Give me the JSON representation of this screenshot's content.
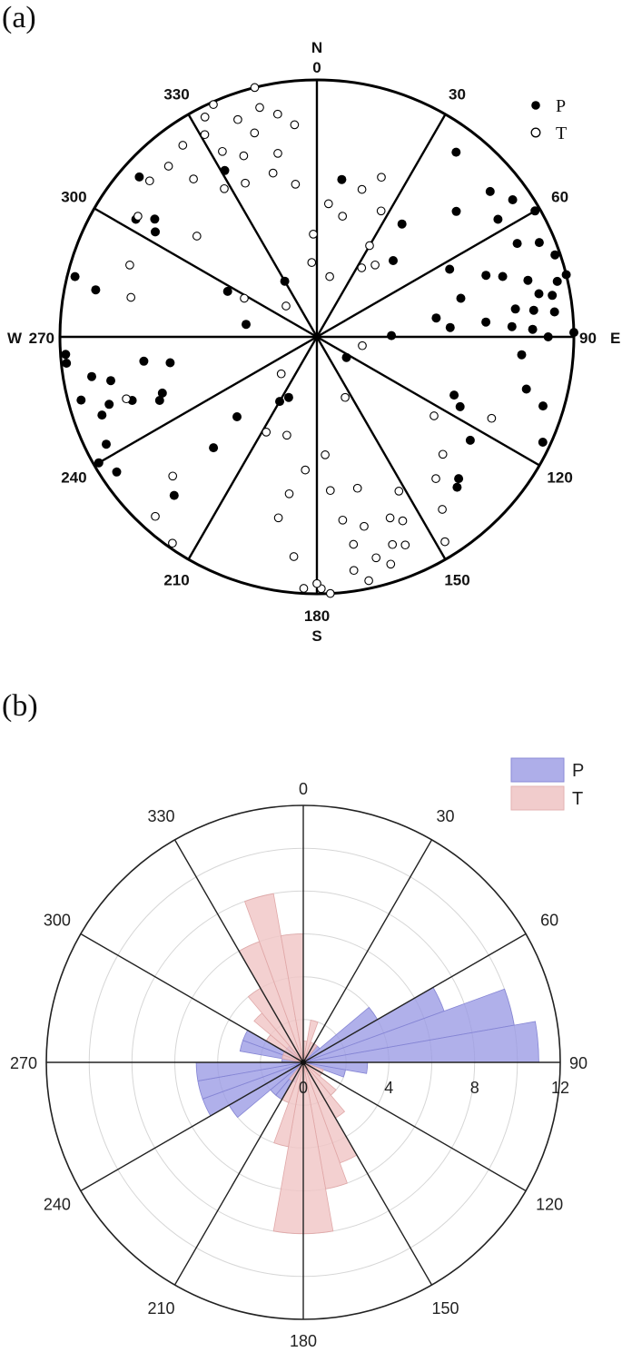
{
  "panels": {
    "a": {
      "label": "(a)"
    },
    "b": {
      "label": "(b)"
    }
  },
  "chart_data": [
    {
      "type": "scatter",
      "coordinate_system": "polar",
      "angle_unit": "degrees azimuth (clockwise from north)",
      "radial_unit": "plunge-based radius (0 = center, 1 = rim)",
      "sectors_deg": 30,
      "angle_ticks": [
        {
          "angle": 0,
          "label": "0",
          "direction": "N"
        },
        {
          "angle": 30,
          "label": "30"
        },
        {
          "angle": 60,
          "label": "60"
        },
        {
          "angle": 90,
          "label": "90",
          "direction": "E"
        },
        {
          "angle": 120,
          "label": "120"
        },
        {
          "angle": 150,
          "label": "150"
        },
        {
          "angle": 180,
          "label": "180",
          "direction": "S"
        },
        {
          "angle": 210,
          "label": "210"
        },
        {
          "angle": 240,
          "label": "240"
        },
        {
          "angle": 270,
          "label": "270",
          "direction": "W"
        },
        {
          "angle": 300,
          "label": "300"
        },
        {
          "angle": 330,
          "label": "330"
        }
      ],
      "legend_position": "top-right",
      "series": [
        {
          "name": "P",
          "marker": "filled-circle",
          "color": "#000000",
          "points": [
            {
              "az": 9,
              "r": 0.62
            },
            {
              "az": 37,
              "r": 0.55
            },
            {
              "az": 37,
              "r": 0.9
            },
            {
              "az": 45,
              "r": 0.42
            },
            {
              "az": 48,
              "r": 0.73
            },
            {
              "az": 50,
              "r": 0.88
            },
            {
              "az": 55,
              "r": 0.93
            },
            {
              "az": 57,
              "r": 0.84
            },
            {
              "az": 60,
              "r": 0.98
            },
            {
              "az": 63,
              "r": 0.58
            },
            {
              "az": 65,
              "r": 0.86
            },
            {
              "az": 67,
              "r": 0.94
            },
            {
              "az": 70,
              "r": 0.7
            },
            {
              "az": 71,
              "r": 0.98
            },
            {
              "az": 72,
              "r": 0.76
            },
            {
              "az": 75,
              "r": 0.85
            },
            {
              "az": 75,
              "r": 0.58
            },
            {
              "az": 76,
              "r": 1.0
            },
            {
              "az": 77,
              "r": 0.96
            },
            {
              "az": 79,
              "r": 0.88
            },
            {
              "az": 80,
              "r": 0.93
            },
            {
              "az": 81,
              "r": 0.47
            },
            {
              "az": 82,
              "r": 0.78
            },
            {
              "az": 83,
              "r": 0.85
            },
            {
              "az": 84,
              "r": 0.93
            },
            {
              "az": 85,
              "r": 0.66
            },
            {
              "az": 86,
              "r": 0.52
            },
            {
              "az": 87,
              "r": 0.76
            },
            {
              "az": 88,
              "r": 0.84
            },
            {
              "az": 89,
              "r": 1.0
            },
            {
              "az": 89,
              "r": 0.29
            },
            {
              "az": 90,
              "r": 0.9
            },
            {
              "az": 95,
              "r": 0.8
            },
            {
              "az": 104,
              "r": 0.84
            },
            {
              "az": 107,
              "r": 0.92
            },
            {
              "az": 115,
              "r": 0.97
            },
            {
              "az": 113,
              "r": 0.58
            },
            {
              "az": 116,
              "r": 0.62
            },
            {
              "az": 124,
              "r": 0.72
            },
            {
              "az": 135,
              "r": 0.78
            },
            {
              "az": 137,
              "r": 0.8
            },
            {
              "az": 205,
              "r": 0.26
            },
            {
              "az": 210,
              "r": 0.29
            },
            {
              "az": 222,
              "r": 0.83
            },
            {
              "az": 223,
              "r": 0.59
            },
            {
              "az": 225,
              "r": 0.44
            },
            {
              "az": 236,
              "r": 0.94
            },
            {
              "az": 240,
              "r": 0.98
            },
            {
              "az": 243,
              "r": 0.92
            },
            {
              "az": 248,
              "r": 0.66
            },
            {
              "az": 250,
              "r": 0.89
            },
            {
              "az": 250,
              "r": 0.64
            },
            {
              "az": 251,
              "r": 0.76
            },
            {
              "az": 252,
              "r": 0.85
            },
            {
              "az": 255,
              "r": 0.95
            },
            {
              "az": 258,
              "r": 0.82
            },
            {
              "az": 260,
              "r": 0.58
            },
            {
              "az": 260,
              "r": 0.89
            },
            {
              "az": 262,
              "r": 0.68
            },
            {
              "az": 264,
              "r": 0.98
            },
            {
              "az": 266,
              "r": 0.98
            },
            {
              "az": 280,
              "r": 0.28
            },
            {
              "az": 282,
              "r": 0.88
            },
            {
              "az": 284,
              "r": 0.97
            },
            {
              "az": 297,
              "r": 0.39
            },
            {
              "az": 303,
              "r": 0.75
            },
            {
              "az": 303,
              "r": 0.84
            },
            {
              "az": 306,
              "r": 0.78
            },
            {
              "az": 312,
              "r": 0.93
            },
            {
              "az": 331,
              "r": 0.74
            },
            {
              "az": 330,
              "r": 0.25
            },
            {
              "az": 125,
              "r": 0.14
            }
          ]
        },
        {
          "name": "T",
          "marker": "open-circle",
          "color": "#000000",
          "points": [
            {
              "az": 5,
              "r": 0.52
            },
            {
              "az": 12,
              "r": 0.24
            },
            {
              "az": 17,
              "r": 0.6
            },
            {
              "az": 22,
              "r": 0.67
            },
            {
              "az": 27,
              "r": 0.55
            },
            {
              "az": 30,
              "r": 0.41
            },
            {
              "az": 39,
              "r": 0.36
            },
            {
              "az": 12,
              "r": 0.48
            },
            {
              "az": 33,
              "r": 0.32
            },
            {
              "az": 101,
              "r": 0.18
            },
            {
              "az": 115,
              "r": 0.75
            },
            {
              "az": 124,
              "r": 0.55
            },
            {
              "az": 133,
              "r": 0.67
            },
            {
              "az": 144,
              "r": 0.83
            },
            {
              "az": 140,
              "r": 0.72
            },
            {
              "az": 148,
              "r": 0.94
            },
            {
              "az": 152,
              "r": 0.68
            },
            {
              "az": 155,
              "r": 0.79
            },
            {
              "az": 157,
              "r": 0.88
            },
            {
              "az": 158,
              "r": 0.76
            },
            {
              "az": 160,
              "r": 0.86
            },
            {
              "az": 162,
              "r": 0.93
            },
            {
              "az": 165,
              "r": 0.89
            },
            {
              "az": 166,
              "r": 0.76
            },
            {
              "az": 168,
              "r": 0.97
            },
            {
              "az": 170,
              "r": 0.82
            },
            {
              "az": 171,
              "r": 0.92
            },
            {
              "az": 176,
              "r": 0.46
            },
            {
              "az": 175,
              "r": 0.6
            },
            {
              "az": 177,
              "r": 1.0
            },
            {
              "az": 179,
              "r": 0.98
            },
            {
              "az": 180,
              "r": 0.96
            },
            {
              "az": 183,
              "r": 0.98
            },
            {
              "az": 186,
              "r": 0.86
            },
            {
              "az": 172,
              "r": 0.72
            },
            {
              "az": 165,
              "r": 0.61
            },
            {
              "az": 185,
              "r": 0.52
            },
            {
              "az": 190,
              "r": 0.62
            },
            {
              "az": 192,
              "r": 0.72
            },
            {
              "az": 197,
              "r": 0.4
            },
            {
              "az": 208,
              "r": 0.42
            },
            {
              "az": 215,
              "r": 0.98
            },
            {
              "az": 222,
              "r": 0.94
            },
            {
              "az": 226,
              "r": 0.78
            },
            {
              "az": 224,
              "r": 0.2
            },
            {
              "az": 252,
              "r": 0.78
            },
            {
              "az": 282,
              "r": 0.74
            },
            {
              "az": 291,
              "r": 0.78
            },
            {
              "az": 298,
              "r": 0.32
            },
            {
              "az": 304,
              "r": 0.84
            },
            {
              "az": 310,
              "r": 0.61
            },
            {
              "az": 313,
              "r": 0.89
            },
            {
              "az": 319,
              "r": 0.88
            },
            {
              "az": 322,
              "r": 0.78
            },
            {
              "az": 325,
              "r": 0.91
            },
            {
              "az": 328,
              "r": 0.68
            },
            {
              "az": 331,
              "r": 0.9
            },
            {
              "az": 333,
              "r": 0.96
            },
            {
              "az": 333,
              "r": 0.81
            },
            {
              "az": 335,
              "r": 0.66
            },
            {
              "az": 336,
              "r": 0.99
            },
            {
              "az": 338,
              "r": 0.76
            },
            {
              "az": 340,
              "r": 0.9
            },
            {
              "az": 343,
              "r": 0.83
            },
            {
              "az": 345,
              "r": 0.66
            },
            {
              "az": 346,
              "r": 0.92
            },
            {
              "az": 348,
              "r": 0.73
            },
            {
              "az": 350,
              "r": 0.88
            },
            {
              "az": 352,
              "r": 0.6
            },
            {
              "az": 354,
              "r": 0.83
            },
            {
              "az": 356,
              "r": 0.29
            },
            {
              "az": 358,
              "r": 0.4
            },
            {
              "az": 346,
              "r": 1.0
            },
            {
              "az": 315,
              "r": 0.17
            },
            {
              "az": 155,
              "r": 0.26
            }
          ]
        }
      ]
    },
    {
      "type": "bar",
      "subtype": "rose-histogram",
      "coordinate_system": "polar",
      "bin_width_deg": 10,
      "radial_axis": {
        "min": 0,
        "max": 12,
        "ticks": [
          0,
          4,
          8,
          12
        ],
        "minor_step": 2
      },
      "angle_ticks": [
        0,
        30,
        60,
        90,
        120,
        150,
        180,
        210,
        240,
        270,
        300,
        330
      ],
      "grid": true,
      "legend_position": "top-right",
      "series": [
        {
          "name": "P",
          "color": "#9a9ae4",
          "bins": [
            {
              "start": 0,
              "count": 0
            },
            {
              "start": 10,
              "count": 0
            },
            {
              "start": 20,
              "count": 0
            },
            {
              "start": 30,
              "count": 1
            },
            {
              "start": 40,
              "count": 1
            },
            {
              "start": 50,
              "count": 4
            },
            {
              "start": 60,
              "count": 7
            },
            {
              "start": 70,
              "count": 10
            },
            {
              "start": 80,
              "count": 11
            },
            {
              "start": 90,
              "count": 3
            },
            {
              "start": 100,
              "count": 2
            },
            {
              "start": 110,
              "count": 0
            },
            {
              "start": 120,
              "count": 0
            },
            {
              "start": 130,
              "count": 0
            },
            {
              "start": 140,
              "count": 0
            },
            {
              "start": 150,
              "count": 0
            },
            {
              "start": 160,
              "count": 0
            },
            {
              "start": 170,
              "count": 0
            },
            {
              "start": 180,
              "count": 0
            },
            {
              "start": 190,
              "count": 0
            },
            {
              "start": 200,
              "count": 1
            },
            {
              "start": 210,
              "count": 2
            },
            {
              "start": 220,
              "count": 2
            },
            {
              "start": 230,
              "count": 4
            },
            {
              "start": 240,
              "count": 5
            },
            {
              "start": 250,
              "count": 5
            },
            {
              "start": 260,
              "count": 5
            },
            {
              "start": 270,
              "count": 1
            },
            {
              "start": 280,
              "count": 3
            },
            {
              "start": 290,
              "count": 3
            },
            {
              "start": 300,
              "count": 1
            },
            {
              "start": 310,
              "count": 1
            },
            {
              "start": 320,
              "count": 0
            },
            {
              "start": 330,
              "count": 0
            },
            {
              "start": 340,
              "count": 0
            },
            {
              "start": 350,
              "count": 0
            }
          ]
        },
        {
          "name": "T",
          "color": "#f0c6c6",
          "bins": [
            {
              "start": 0,
              "count": 1
            },
            {
              "start": 10,
              "count": 2
            },
            {
              "start": 20,
              "count": 1
            },
            {
              "start": 30,
              "count": 1
            },
            {
              "start": 40,
              "count": 0
            },
            {
              "start": 50,
              "count": 0
            },
            {
              "start": 60,
              "count": 0
            },
            {
              "start": 70,
              "count": 0
            },
            {
              "start": 80,
              "count": 0
            },
            {
              "start": 90,
              "count": 0
            },
            {
              "start": 100,
              "count": 0
            },
            {
              "start": 110,
              "count": 1
            },
            {
              "start": 120,
              "count": 1
            },
            {
              "start": 130,
              "count": 2
            },
            {
              "start": 140,
              "count": 3
            },
            {
              "start": 150,
              "count": 5
            },
            {
              "start": 160,
              "count": 6
            },
            {
              "start": 170,
              "count": 8
            },
            {
              "start": 180,
              "count": 8
            },
            {
              "start": 190,
              "count": 4
            },
            {
              "start": 200,
              "count": 2
            },
            {
              "start": 210,
              "count": 1
            },
            {
              "start": 220,
              "count": 0
            },
            {
              "start": 230,
              "count": 0
            },
            {
              "start": 240,
              "count": 0
            },
            {
              "start": 250,
              "count": 0
            },
            {
              "start": 260,
              "count": 0
            },
            {
              "start": 270,
              "count": 0
            },
            {
              "start": 280,
              "count": 1
            },
            {
              "start": 290,
              "count": 1
            },
            {
              "start": 300,
              "count": 2
            },
            {
              "start": 310,
              "count": 3
            },
            {
              "start": 320,
              "count": 4
            },
            {
              "start": 330,
              "count": 6
            },
            {
              "start": 340,
              "count": 8
            },
            {
              "start": 350,
              "count": 6
            }
          ]
        }
      ]
    }
  ]
}
